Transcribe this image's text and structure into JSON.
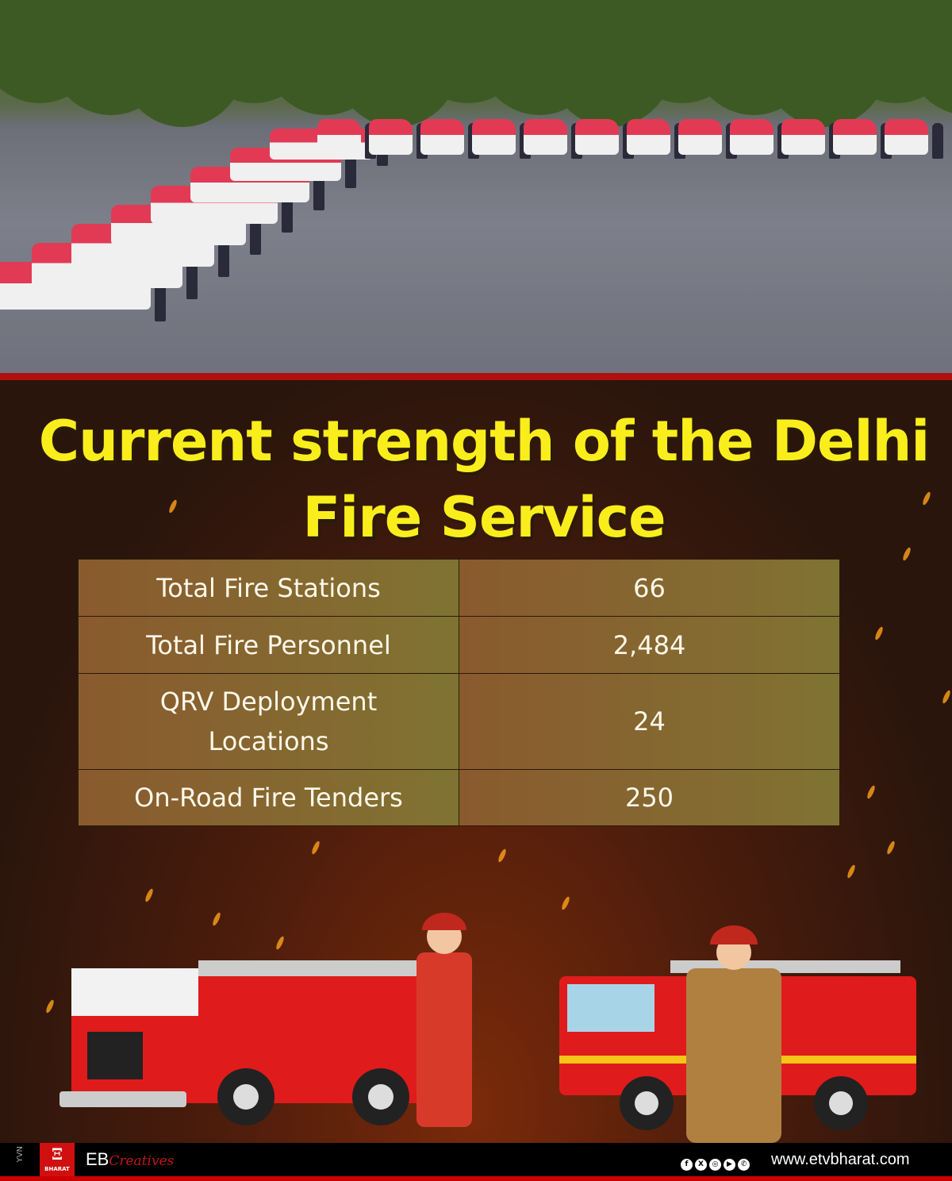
{
  "title": "Current strength of the Delhi Fire Service",
  "stats": [
    {
      "label": "Total Fire Stations",
      "value": "66"
    },
    {
      "label": "Total Fire Personnel",
      "value": "2,484"
    },
    {
      "label": "QRV Deployment Locations",
      "value": "24"
    },
    {
      "label": "On-Road Fire Tenders",
      "value": "250"
    }
  ],
  "footer": {
    "side_tag": "YVN",
    "logo_text": "BHARAT",
    "brand": "EB",
    "brand_script": "Creatives",
    "social_icons": [
      "facebook-icon",
      "x-icon",
      "instagram-icon",
      "youtube-icon",
      "whatsapp-icon"
    ],
    "website": "www.etvbharat.com"
  },
  "colors": {
    "title": "#f9ee1c",
    "accent_red": "#b01010",
    "table_cell": "#807332"
  }
}
